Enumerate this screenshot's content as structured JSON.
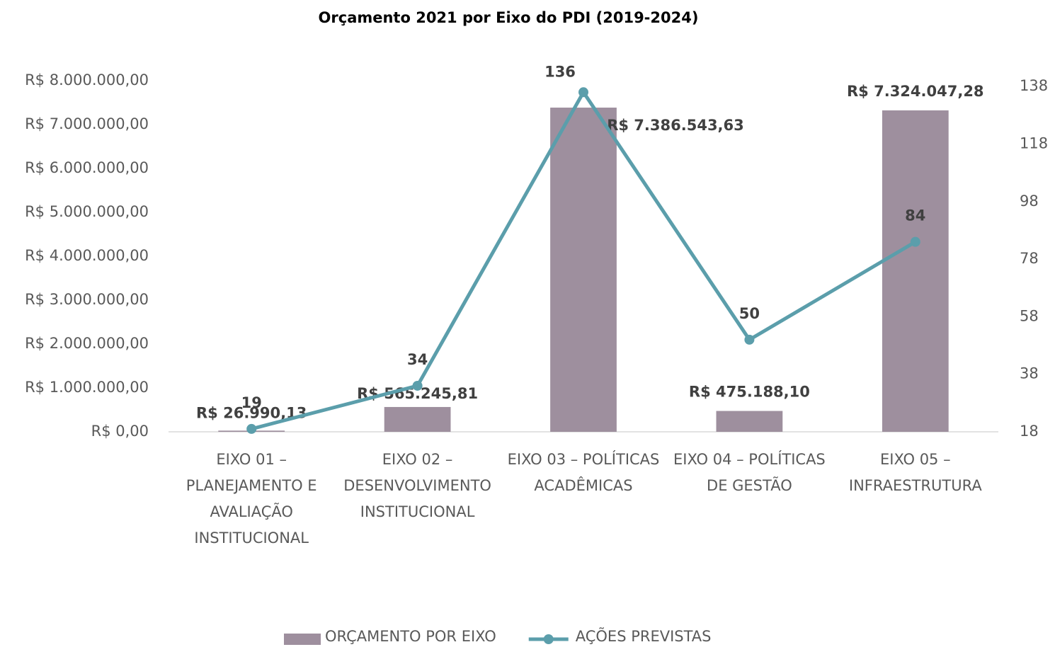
{
  "chart_data": {
    "type": "bar_line",
    "title": "Orçamento 2021 por Eixo do PDI (2019-2024)",
    "categories": [
      "EIXO 01 – PLANEJAMENTO E AVALIAÇÃO INSTITUCIONAL",
      "EIXO 02 – DESENVOLVIMENTO INSTITUCIONAL",
      "EIXO 03 – POLÍTICAS ACADÊMICAS",
      "EIXO 04 – POLÍTICAS DE GESTÃO",
      "EIXO 05 – INFRAESTRUTURA"
    ],
    "series": [
      {
        "name": "ORÇAMENTO POR EIXO",
        "type": "bar",
        "color": "#9e8f9e",
        "axis": "y",
        "values": [
          26990.13,
          565245.81,
          7386543.63,
          475188.1,
          7324047.28
        ],
        "value_labels": [
          "R$ 26.990,13",
          "R$ 565.245,81",
          "R$ 7.386.543,63",
          "R$ 475.188,10",
          "R$ 7.324.047,28"
        ]
      },
      {
        "name": "AÇÕES PREVISTAS",
        "type": "line",
        "color": "#5b9eab",
        "axis": "y2",
        "values": [
          19,
          34,
          136,
          50,
          84
        ]
      }
    ],
    "ylim": [
      0,
      8000000
    ],
    "yticks": [
      {
        "value": 0,
        "label": "R$ 0,00"
      },
      {
        "value": 1000000,
        "label": "R$ 1.000.000,00"
      },
      {
        "value": 2000000,
        "label": "R$ 2.000.000,00"
      },
      {
        "value": 3000000,
        "label": "R$ 3.000.000,00"
      },
      {
        "value": 4000000,
        "label": "R$ 4.000.000,00"
      },
      {
        "value": 5000000,
        "label": "R$ 5.000.000,00"
      },
      {
        "value": 6000000,
        "label": "R$ 6.000.000,00"
      },
      {
        "value": 7000000,
        "label": "R$ 7.000.000,00"
      },
      {
        "value": 8000000,
        "label": "R$ 8.000.000,00"
      }
    ],
    "y2lim": [
      18,
      140
    ],
    "y2ticks": [
      18,
      38,
      58,
      78,
      98,
      118,
      138
    ],
    "legend": "bottom"
  }
}
